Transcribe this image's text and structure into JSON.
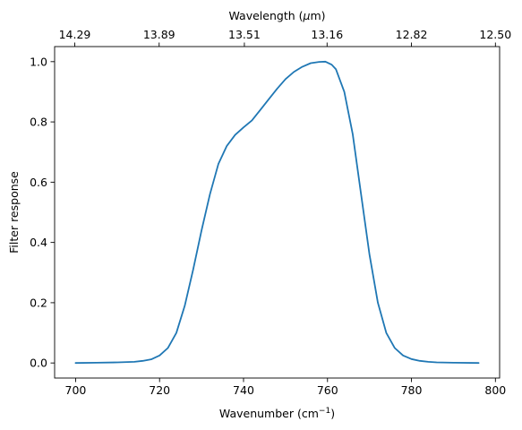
{
  "chart_data": {
    "type": "line",
    "xlabel_text": "Wavenumber (cm",
    "xlabel_sup": "−1",
    "xlabel_end": ")",
    "ylabel": "Filter response",
    "top_xlabel_text": "Wavelength (",
    "top_xlabel_mu": "μ",
    "top_xlabel_end": "m)",
    "xlim": [
      695,
      801
    ],
    "ylim": [
      -0.05,
      1.05
    ],
    "grid": false,
    "x_ticks": [
      700,
      720,
      740,
      760,
      780,
      800
    ],
    "x_tick_labels": [
      "700",
      "720",
      "740",
      "760",
      "780",
      "800"
    ],
    "y_ticks": [
      0.0,
      0.2,
      0.4,
      0.6,
      0.8,
      1.0
    ],
    "y_tick_labels": [
      "0.0",
      "0.2",
      "0.4",
      "0.6",
      "0.8",
      "1.0"
    ],
    "top_ticks": [
      {
        "wavenumber": 699.8,
        "label": "14.29"
      },
      {
        "wavenumber": 719.9,
        "label": "13.89"
      },
      {
        "wavenumber": 740.2,
        "label": "13.51"
      },
      {
        "wavenumber": 759.9,
        "label": "13.16"
      },
      {
        "wavenumber": 780.0,
        "label": "12.82"
      },
      {
        "wavenumber": 800.0,
        "label": "12.50"
      }
    ],
    "series": [
      {
        "color": "#1f77b4",
        "x": [
          700,
          705,
          710,
          714,
          716,
          718,
          720,
          722,
          724,
          726,
          728,
          730,
          732,
          734,
          736,
          738,
          740,
          742,
          744,
          746,
          748,
          750,
          752,
          754,
          756,
          758,
          759.5,
          761,
          762,
          764,
          766,
          768,
          770,
          772,
          774,
          776,
          778,
          780,
          782,
          784,
          786,
          790,
          796
        ],
        "y": [
          0.0,
          0.001,
          0.002,
          0.004,
          0.007,
          0.012,
          0.025,
          0.05,
          0.1,
          0.19,
          0.31,
          0.44,
          0.56,
          0.66,
          0.72,
          0.757,
          0.782,
          0.805,
          0.84,
          0.875,
          0.91,
          0.942,
          0.966,
          0.983,
          0.995,
          0.999,
          1.0,
          0.99,
          0.975,
          0.9,
          0.76,
          0.56,
          0.36,
          0.2,
          0.1,
          0.05,
          0.025,
          0.013,
          0.007,
          0.004,
          0.002,
          0.001,
          0.0
        ]
      }
    ]
  }
}
